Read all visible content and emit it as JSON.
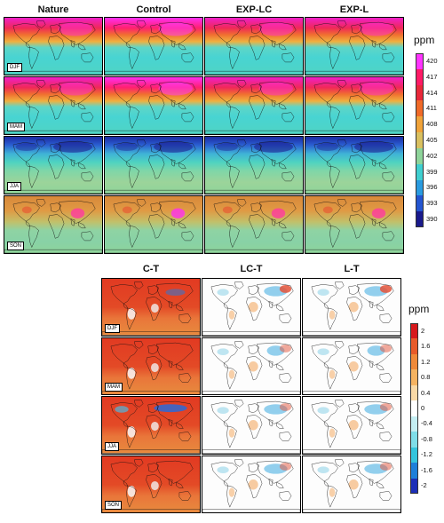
{
  "top_figure": {
    "columns": [
      {
        "title": "Nature",
        "scheme": "top"
      },
      {
        "title": "Control",
        "scheme": "top_hi"
      },
      {
        "title": "EXP-LC",
        "scheme": "top"
      },
      {
        "title": "EXP-L",
        "scheme": "top"
      }
    ],
    "seasons": [
      "DJF",
      "MAM",
      "JJA",
      "SON"
    ],
    "colorbar": {
      "unit": "ppm",
      "ticks": [
        "420",
        "417",
        "414",
        "411",
        "408",
        "405",
        "402",
        "399",
        "396",
        "393",
        "390"
      ],
      "colors": [
        "#ff33ff",
        "#ff1a66",
        "#e8283a",
        "#f06a28",
        "#f0a33a",
        "#d9c060",
        "#8ed49a",
        "#3fcfd0",
        "#2a9be0",
        "#2455d0",
        "#1a1a8c"
      ]
    }
  },
  "bottom_figure": {
    "columns": [
      {
        "title": "C-T",
        "scheme": "diff_ct"
      },
      {
        "title": "LC-T",
        "scheme": "diff_small"
      },
      {
        "title": "L-T",
        "scheme": "diff_small"
      }
    ],
    "seasons": [
      "DJF",
      "MAM",
      "JJA",
      "SON"
    ],
    "colorbar": {
      "unit": "ppm",
      "ticks": [
        "2",
        "1.6",
        "1.2",
        "0.8",
        "0.4",
        "0",
        "-0.4",
        "-0.8",
        "-1.2",
        "-1.6",
        "-2"
      ],
      "colors": [
        "#d7191c",
        "#e85b2a",
        "#f08a3a",
        "#f5b361",
        "#f9d9a6",
        "#ffffff",
        "#c4eef2",
        "#7fdde8",
        "#35c4dc",
        "#1e7fd9",
        "#1c2fb8"
      ]
    }
  }
}
